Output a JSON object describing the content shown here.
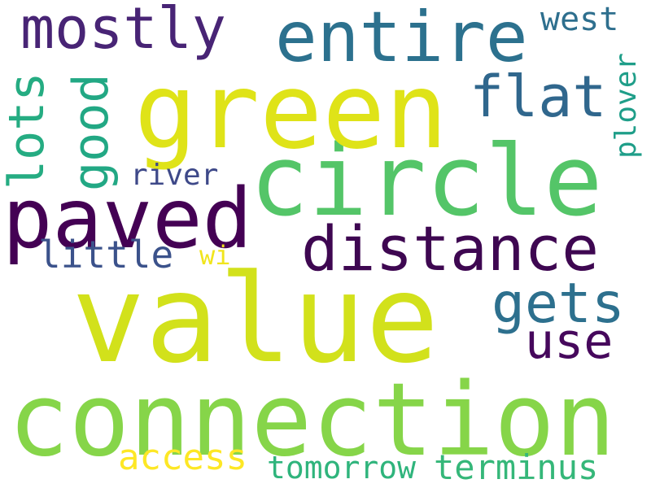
{
  "words": [
    {
      "text": "value",
      "color": "#d2e11b"
    },
    {
      "text": "connection",
      "color": "#86d549"
    },
    {
      "text": "circle",
      "color": "#54c568"
    },
    {
      "text": "green",
      "color": "#dfe318"
    },
    {
      "text": "paved",
      "color": "#440154"
    },
    {
      "text": "entire",
      "color": "#2c718e"
    },
    {
      "text": "distance",
      "color": "#3e0751"
    },
    {
      "text": "mostly",
      "color": "#482475"
    },
    {
      "text": "flat",
      "color": "#30678d"
    },
    {
      "text": "gets",
      "color": "#2d708e"
    },
    {
      "text": "use",
      "color": "#46085c"
    },
    {
      "text": "good",
      "color": "#22a884"
    },
    {
      "text": "lots",
      "color": "#25ac82"
    },
    {
      "text": "little",
      "color": "#3b528b"
    },
    {
      "text": "river",
      "color": "#3e4989"
    },
    {
      "text": "west",
      "color": "#2e6f8e"
    },
    {
      "text": "plover",
      "color": "#1f9e89"
    },
    {
      "text": "wi",
      "color": "#f1e51d"
    },
    {
      "text": "access",
      "color": "#fde725"
    },
    {
      "text": "tomorrow",
      "color": "#2fb47c"
    },
    {
      "text": "terminus",
      "color": "#35b779"
    }
  ]
}
